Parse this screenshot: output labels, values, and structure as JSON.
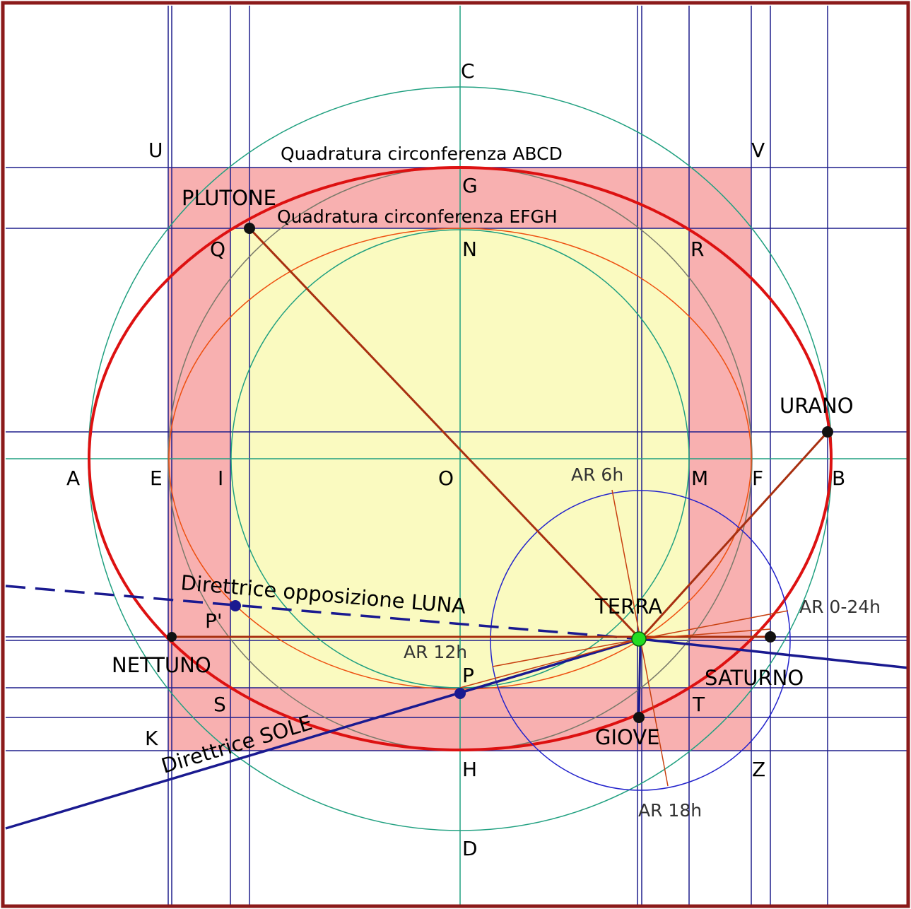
{
  "points": {
    "A": "A",
    "B": "B",
    "C": "C",
    "D": "D",
    "E": "E",
    "F": "F",
    "G": "G",
    "H": "H",
    "I": "I",
    "M": "M",
    "N": "N",
    "O": "O",
    "P": "P",
    "P_prime": "P'",
    "Q": "Q",
    "R": "R",
    "S": "S",
    "T": "T",
    "U": "U",
    "V": "V",
    "K": "K",
    "Z": "Z"
  },
  "titles": {
    "abcd": "Quadratura circonferenza ABCD",
    "efgh": "Quadratura  circonferenza EFGH"
  },
  "planets": {
    "plutone": "PLUTONE",
    "urano": "URANO",
    "nettuno": "NETTUNO",
    "saturno": "SATURNO",
    "giove": "GIOVE",
    "terra": "TERRA"
  },
  "directrices": {
    "sole": "Direttrice SOLE",
    "luna": "Direttrice opposizione LUNA"
  },
  "ascension": {
    "ar6": "AR 6h",
    "ar12": "AR 12h",
    "ar18": "AR 18h",
    "ar0": "AR 0-24h"
  },
  "colors": {
    "frame": "#8b1a1a",
    "red_fill": "#f8b0b0",
    "yellow_fill": "#fafac0",
    "grid_line": "#1e1e8c",
    "teal_circle": "#20a080",
    "red_ellipse": "#dd1111",
    "orange_ellipse": "#ee5010",
    "brown_line": "#a83010",
    "navy_line": "#1a1a90",
    "terra": "#22dd22"
  }
}
